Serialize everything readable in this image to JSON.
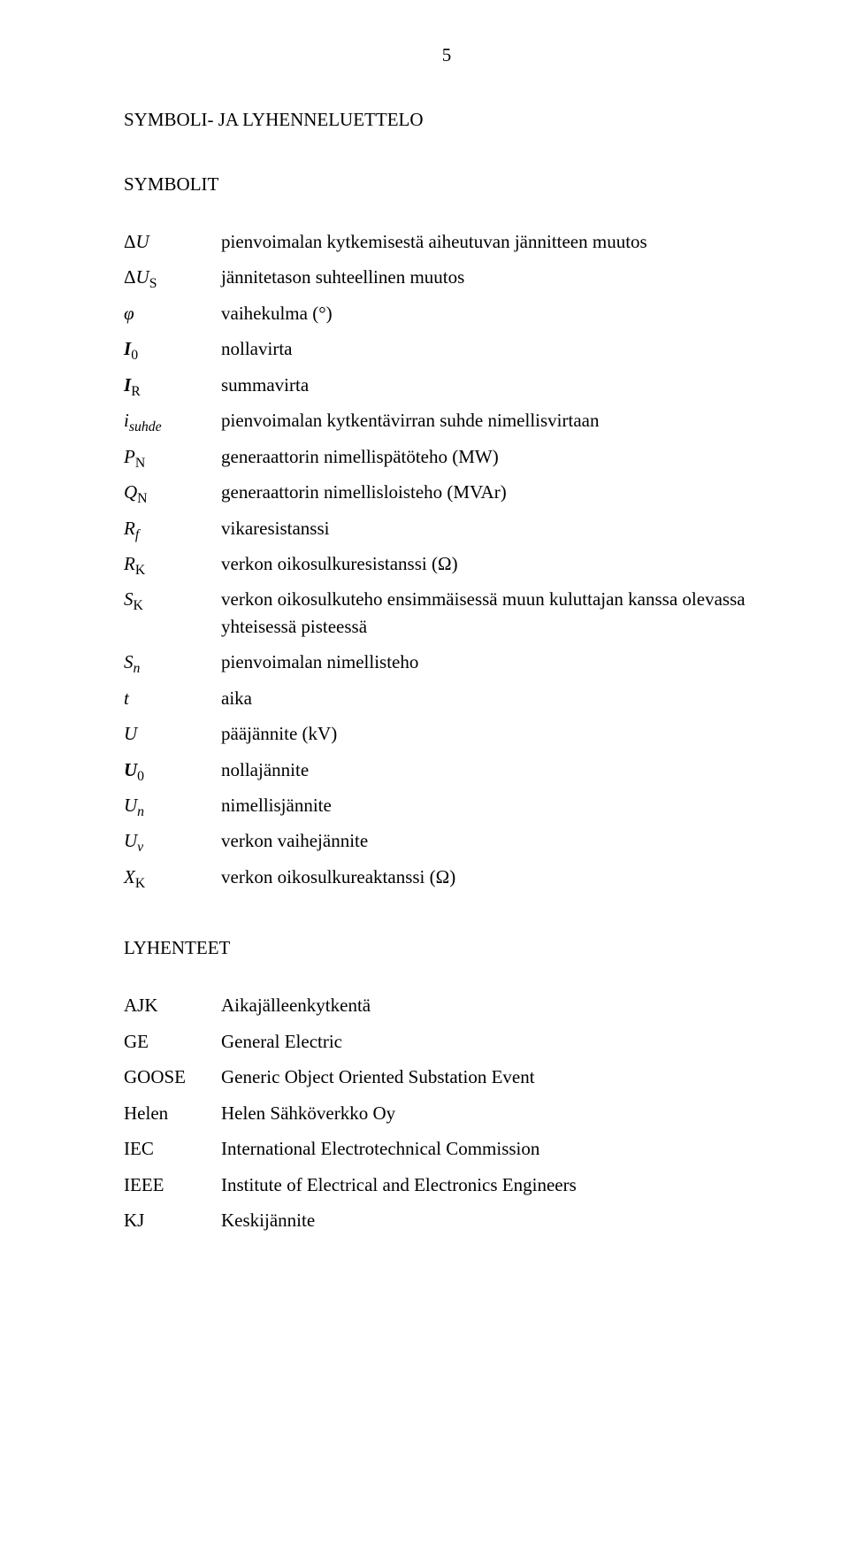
{
  "page_number": "5",
  "heading": "SYMBOLI- JA LYHENNELUETTELO",
  "sub_symbols": "SYMBOLIT",
  "sub_abbr": "LYHENTEET",
  "symbols": [
    {
      "desc": "pienvoimalan kytkemisestä aiheutuvan jännitteen muutos"
    },
    {
      "desc": "jännitetason suhteellinen muutos"
    },
    {
      "desc": "vaihekulma (°)"
    },
    {
      "desc": "nollavirta"
    },
    {
      "desc": "summavirta"
    },
    {
      "desc": "pienvoimalan kytkentävirran suhde nimellisvirtaan"
    },
    {
      "desc": "generaattorin nimellispätöteho (MW)"
    },
    {
      "desc": "generaattorin nimellisloisteho (MVAr)"
    },
    {
      "desc": "vikaresistanssi"
    },
    {
      "desc": "verkon oikosulkuresistanssi (Ω)"
    },
    {
      "desc": "verkon oikosulkuteho ensimmäisessä muun kuluttajan kanssa olevassa yhteisessä pisteessä"
    },
    {
      "desc": "pienvoimalan nimellisteho"
    },
    {
      "desc": "aika"
    },
    {
      "desc": "pääjännite (kV)"
    },
    {
      "desc": "nollajännite"
    },
    {
      "desc": "nimellisjännite"
    },
    {
      "desc": "verkon vaihejännite"
    },
    {
      "desc": "verkon oikosulkureaktanssi (Ω)"
    }
  ],
  "abbreviations": [
    {
      "abbr": "AJK",
      "desc": "Aikajälleenkytkentä"
    },
    {
      "abbr": "GE",
      "desc": "General Electric"
    },
    {
      "abbr": "GOOSE",
      "desc": "Generic Object Oriented Substation Event"
    },
    {
      "abbr": "Helen",
      "desc": "Helen Sähköverkko Oy"
    },
    {
      "abbr": "IEC",
      "desc": "International Electrotechnical Commission"
    },
    {
      "abbr": "IEEE",
      "desc": "Institute of Electrical and Electronics Engineers"
    },
    {
      "abbr": "KJ",
      "desc": "Keskijännite"
    }
  ]
}
